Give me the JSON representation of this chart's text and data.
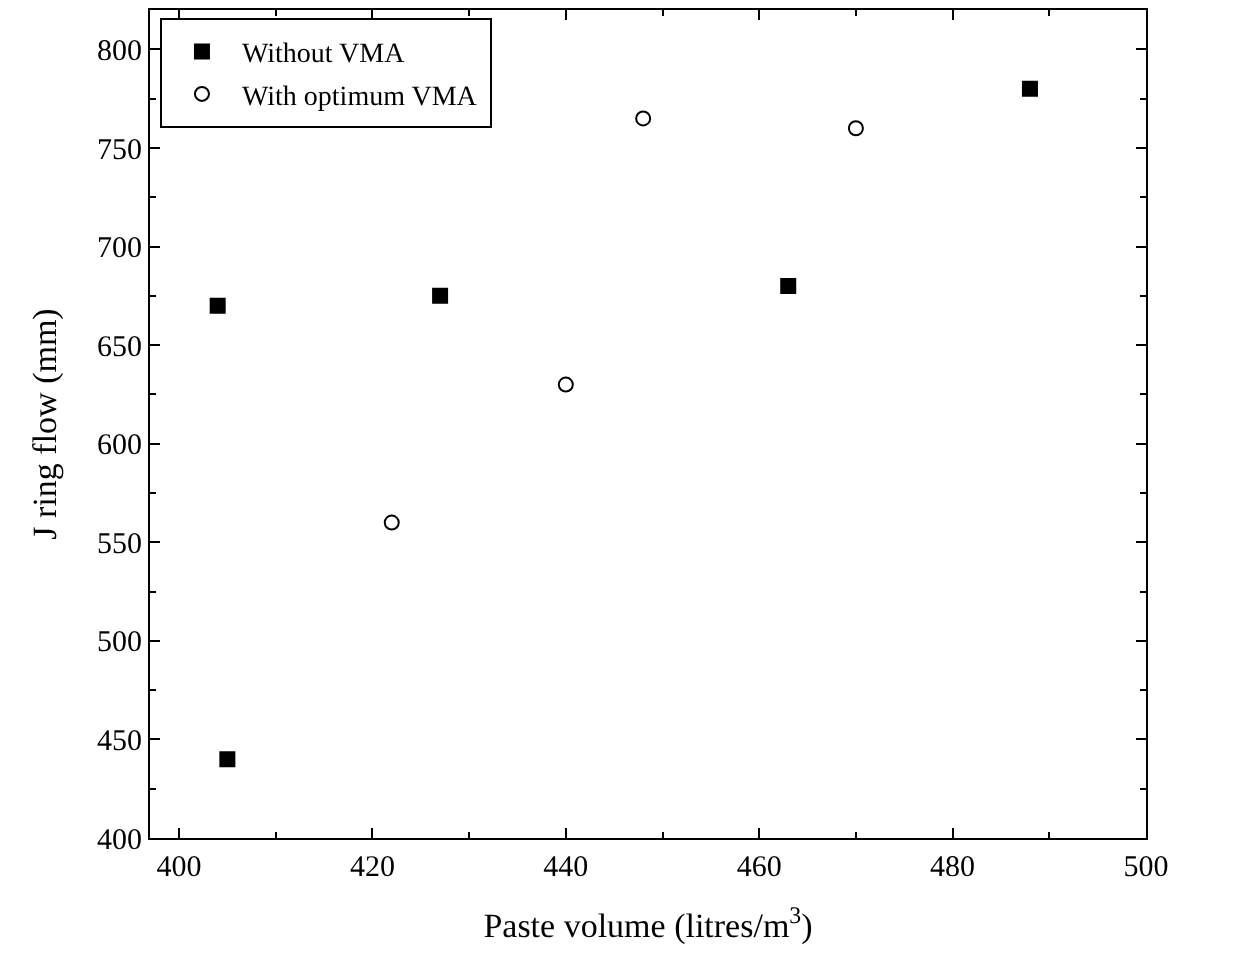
{
  "chart_data": {
    "type": "scatter",
    "xlabel": "Paste volume (litres/m$^{3}$)",
    "ylabel": "J ring flow (mm)",
    "xlim": [
      397,
      500
    ],
    "xticks": [
      400,
      420,
      440,
      460,
      480,
      500
    ],
    "ylim": [
      400,
      820
    ],
    "yticks": [
      400,
      450,
      500,
      550,
      600,
      650,
      700,
      750,
      800
    ],
    "legend": "top left",
    "series": [
      {
        "name": "Without VMA",
        "color": "#000000",
        "marker": "square",
        "x": [
          404,
          405,
          427,
          463,
          488
        ],
        "values": [
          670,
          440,
          675,
          680,
          780
        ]
      },
      {
        "name": "With optimum VMA",
        "color": "#000000",
        "marker": "circle-open",
        "x": [
          422,
          440,
          448,
          470
        ],
        "values": [
          560,
          630,
          765,
          760
        ]
      }
    ]
  }
}
